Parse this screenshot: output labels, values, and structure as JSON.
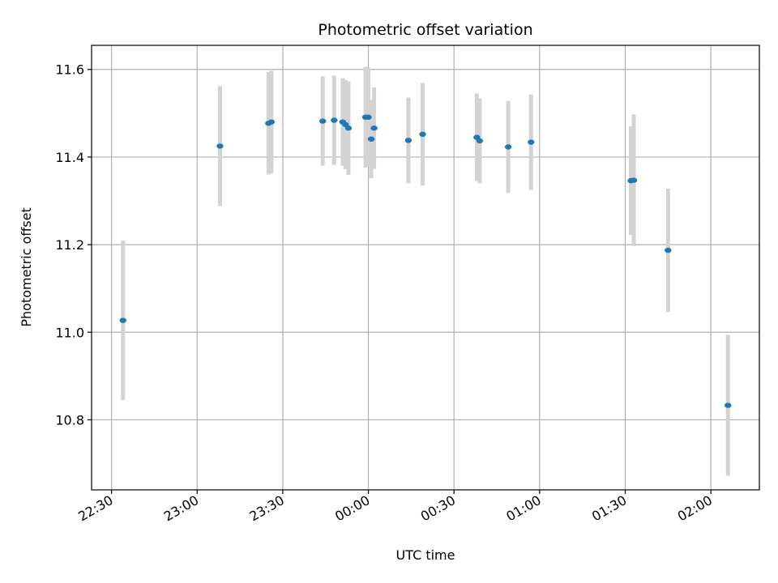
{
  "chart_data": {
    "type": "scatter",
    "title": "Photometric offset variation",
    "xlabel": "UTC time",
    "ylabel": "Photometric offset",
    "x_ticks": [
      "22:30",
      "23:00",
      "23:30",
      "00:00",
      "00:30",
      "01:00",
      "01:30",
      "02:00"
    ],
    "y_ticks": [
      "10.8",
      "11.0",
      "11.2",
      "11.4",
      "11.6"
    ],
    "xlim": [
      "22:23",
      "02:17"
    ],
    "ylim": [
      10.64,
      11.655
    ],
    "grid": true,
    "colors": {
      "points": "#1f77b4",
      "error_bars": "#d3d3d3",
      "grid": "#b0b0b0"
    },
    "points": [
      {
        "time": "22:34",
        "y": 11.027,
        "err": 0.182
      },
      {
        "time": "23:08",
        "y": 11.425,
        "err": 0.137
      },
      {
        "time": "23:25",
        "y": 11.477,
        "err": 0.117
      },
      {
        "time": "23:26",
        "y": 11.48,
        "err": 0.117
      },
      {
        "time": "23:44",
        "y": 11.482,
        "err": 0.102
      },
      {
        "time": "23:48",
        "y": 11.484,
        "err": 0.102
      },
      {
        "time": "23:51",
        "y": 11.48,
        "err": 0.1
      },
      {
        "time": "23:52",
        "y": 11.474,
        "err": 0.102
      },
      {
        "time": "23:53",
        "y": 11.466,
        "err": 0.107
      },
      {
        "time": "23:59",
        "y": 11.491,
        "err": 0.115
      },
      {
        "time": "00:00",
        "y": 11.491,
        "err": 0.113
      },
      {
        "time": "00:01",
        "y": 11.441,
        "err": 0.089
      },
      {
        "time": "00:02",
        "y": 11.466,
        "err": 0.093
      },
      {
        "time": "00:14",
        "y": 11.438,
        "err": 0.098
      },
      {
        "time": "00:19",
        "y": 11.452,
        "err": 0.117
      },
      {
        "time": "00:38",
        "y": 11.445,
        "err": 0.1
      },
      {
        "time": "00:39",
        "y": 11.437,
        "err": 0.097
      },
      {
        "time": "00:49",
        "y": 11.423,
        "err": 0.105
      },
      {
        "time": "00:57",
        "y": 11.434,
        "err": 0.109
      },
      {
        "time": "01:32",
        "y": 11.346,
        "err": 0.124
      },
      {
        "time": "01:33",
        "y": 11.347,
        "err": 0.15
      },
      {
        "time": "01:45",
        "y": 11.187,
        "err": 0.141
      },
      {
        "time": "02:06",
        "y": 10.833,
        "err": 0.161
      }
    ]
  }
}
